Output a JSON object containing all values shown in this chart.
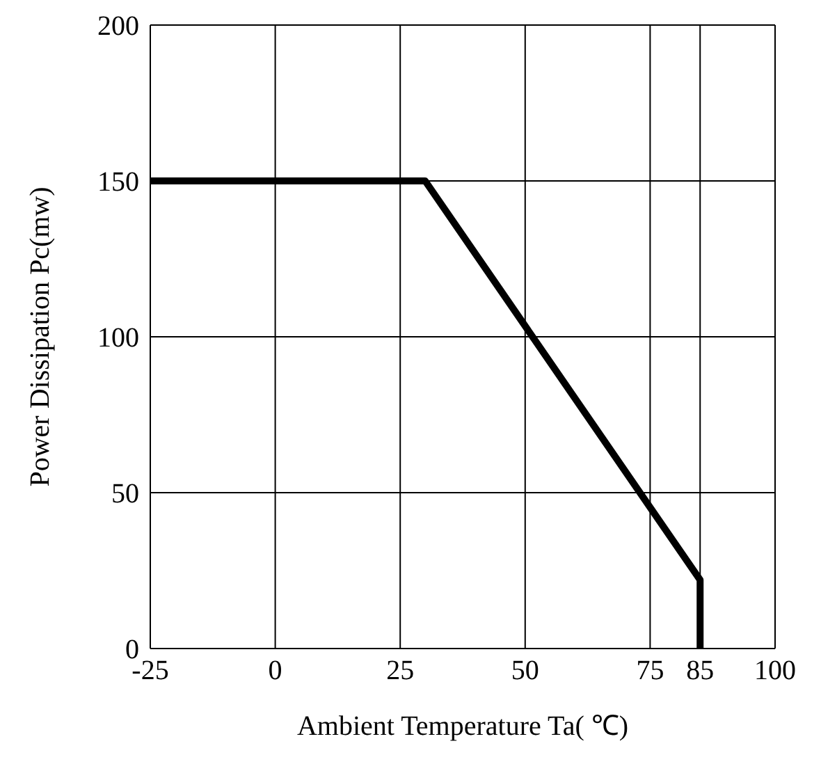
{
  "chart_data": {
    "type": "line",
    "xlabel": "Ambient Temperature Ta( ℃)",
    "ylabel": "Power Dissipation Pc(mw)",
    "series": [
      {
        "color": "#000000",
        "x": [
          -25,
          30,
          85,
          85
        ],
        "values": [
          150,
          150,
          22,
          0
        ]
      }
    ],
    "xlim": [
      -25,
      100
    ],
    "xticks": [
      -25,
      0,
      25,
      50,
      75,
      85,
      100
    ],
    "ylim": [
      0,
      200
    ],
    "yticks": [
      0,
      50,
      100,
      150,
      200
    ],
    "grid": true,
    "marker": "none",
    "line_style": "solid"
  }
}
